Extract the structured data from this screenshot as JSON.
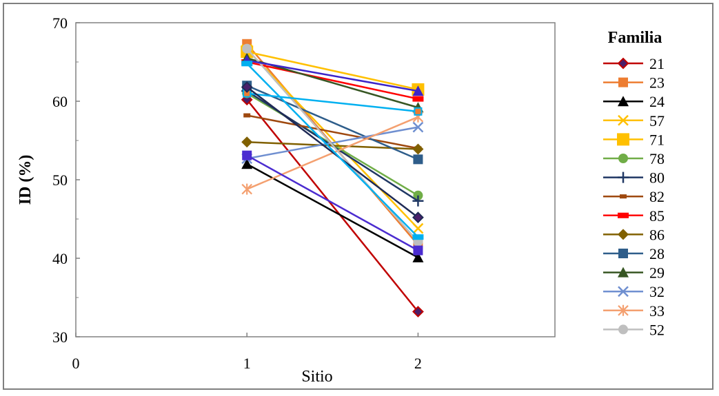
{
  "chart_data": {
    "type": "line",
    "xlabel": "Sitio",
    "ylabel": "ID (%)",
    "xlim": [
      0,
      2.8
    ],
    "ylim": [
      30,
      70
    ],
    "x_ticks": [
      "0",
      "1",
      "2"
    ],
    "y_ticks": [
      "30",
      "40",
      "50",
      "60",
      "70"
    ],
    "x": [
      1,
      2
    ],
    "grid": false,
    "legend": {
      "title": "Familia",
      "placement": "right"
    },
    "series": [
      {
        "name": "21",
        "values": [
          60.2,
          33.2
        ],
        "color": "#c00000",
        "marker": "diamond-outline"
      },
      {
        "name": "23",
        "values": [
          67.3,
          41.7
        ],
        "color": "#ed7d31",
        "marker": "square"
      },
      {
        "name": "24",
        "values": [
          52.0,
          40.1
        ],
        "color": "#000000",
        "marker": "triangle"
      },
      {
        "name": "57",
        "values": [
          66.6,
          43.8
        ],
        "color": "#ffc000",
        "marker": "x"
      },
      {
        "name": "71",
        "values": [
          66.3,
          61.5
        ],
        "color": "#ffc000",
        "marker": "square-large"
      },
      {
        "name": "78",
        "values": [
          61.0,
          48.0
        ],
        "color": "#70ad47",
        "marker": "circle"
      },
      {
        "name": "80",
        "values": [
          61.3,
          47.3
        ],
        "color": "#203864",
        "marker": "plus"
      },
      {
        "name": "82",
        "values": [
          58.2,
          54.0
        ],
        "color": "#9e480e",
        "marker": "dash"
      },
      {
        "name": "85",
        "values": [
          65.0,
          60.3
        ],
        "color": "#ff0000",
        "marker": "dash-wide"
      },
      {
        "name": "86",
        "values": [
          54.8,
          53.9
        ],
        "color": "#806000",
        "marker": "diamond"
      },
      {
        "name": "28",
        "values": [
          62.0,
          52.6
        ],
        "color": "#2e5d8a",
        "marker": "square"
      },
      {
        "name": "29",
        "values": [
          65.5,
          59.2
        ],
        "color": "#375623",
        "marker": "triangle"
      },
      {
        "name": "32",
        "values": [
          52.7,
          56.7
        ],
        "color": "#6f8fd0",
        "marker": "x"
      },
      {
        "name": "33",
        "values": [
          48.8,
          58.0
        ],
        "color": "#f4a070",
        "marker": "asterisk"
      },
      {
        "name": "52",
        "values": [
          66.7,
          42.1
        ],
        "color": "#bfbfbf",
        "marker": "circle"
      },
      {
        "name": "",
        "values": [
          61.0,
          58.7
        ],
        "color": "#00b0f0",
        "marker": "square-small"
      },
      {
        "name": "",
        "values": [
          53.1,
          41.0
        ],
        "color": "#4b2cd0",
        "marker": "square"
      },
      {
        "name": "",
        "values": [
          65.2,
          61.3
        ],
        "color": "#3b24c8",
        "marker": "triangle"
      },
      {
        "name": "",
        "values": [
          61.8,
          45.2
        ],
        "color": "#1f2a55",
        "marker": "diamond-outline"
      },
      {
        "name": "",
        "values": [
          64.8,
          42.7
        ],
        "color": "#00b0f0",
        "marker": "dash-wide"
      }
    ]
  }
}
